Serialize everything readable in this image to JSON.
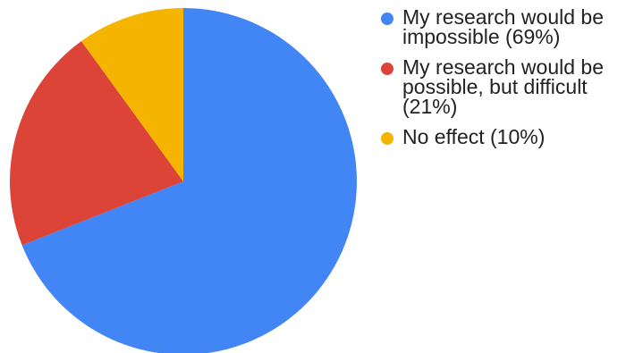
{
  "chart_data": {
    "type": "pie",
    "title": "",
    "legend_position": "right",
    "start_angle": "12 o'clock",
    "direction": "clockwise",
    "slices": [
      {
        "label": "My research would be impossible (69%)",
        "value": 69,
        "color": "#4285f4"
      },
      {
        "label": "My research would be possible, but difficult (21%)",
        "value": 21,
        "color": "#db4437"
      },
      {
        "label": "No effect (10%)",
        "value": 10,
        "color": "#f4b400"
      }
    ]
  }
}
